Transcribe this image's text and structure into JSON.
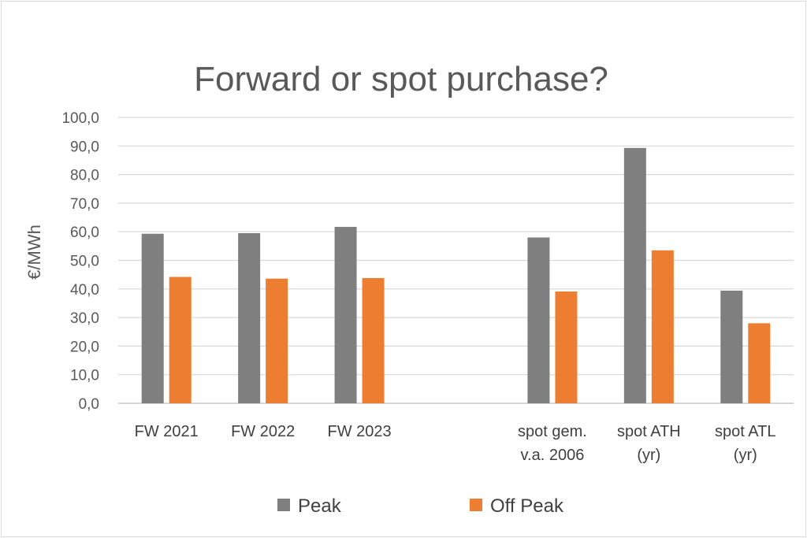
{
  "chart_data": {
    "type": "bar",
    "title": "Forward or spot purchase?",
    "ylabel": "€/MWh",
    "xlabel": "",
    "ylim": [
      0,
      100
    ],
    "yticks": [
      "0,0",
      "10,0",
      "20,0",
      "30,0",
      "40,0",
      "50,0",
      "60,0",
      "70,0",
      "80,0",
      "90,0",
      "100,0"
    ],
    "grid": true,
    "legend_position": "bottom",
    "categories": [
      [
        "FW 2021"
      ],
      [
        "FW 2022"
      ],
      [
        "FW 2023"
      ],
      [
        ""
      ],
      [
        "spot gem.",
        "v.a. 2006"
      ],
      [
        "spot ATH",
        "(yr)"
      ],
      [
        "spot ATL",
        "(yr)"
      ]
    ],
    "series": [
      {
        "name": "Peak",
        "color": "#7f7f7f",
        "values": [
          59.3,
          59.5,
          61.7,
          null,
          58.0,
          89.3,
          39.4
        ]
      },
      {
        "name": "Off Peak",
        "color": "#ed7d31",
        "values": [
          44.2,
          43.6,
          43.8,
          null,
          39.1,
          53.5,
          28.0
        ]
      }
    ]
  }
}
